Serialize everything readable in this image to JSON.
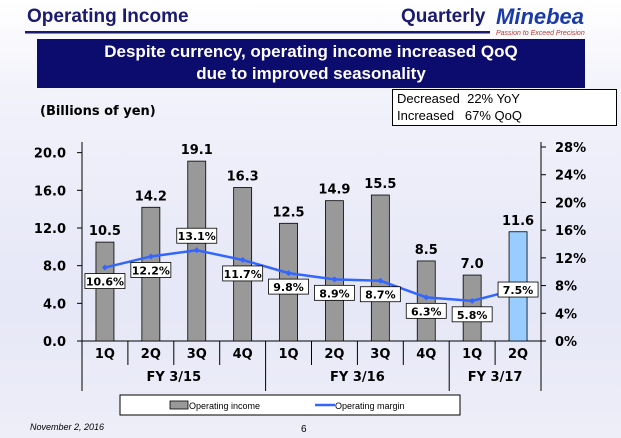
{
  "header": {
    "title": "Operating Income",
    "subtitle": "Quarterly",
    "logo": "Minebea",
    "tagline": "Passion to Exceed Precision"
  },
  "banner": {
    "line1": "Despite currency, operating income increased QoQ",
    "line2": "due to improved seasonality"
  },
  "note": {
    "line1": "Decreased  22% YoY",
    "line2": "Increased   67% QoQ"
  },
  "footer": {
    "date": "November 2, 2016",
    "page": "6"
  },
  "colors": {
    "bar": "#999999",
    "bar_highlight": "#99ccff",
    "line": "#3366ff",
    "banner": "#0c0c6e"
  },
  "chart_data": {
    "type": "bar+line",
    "ylabel": "(Billions of yen)",
    "categories": [
      "1Q",
      "2Q",
      "3Q",
      "4Q",
      "1Q",
      "2Q",
      "3Q",
      "4Q",
      "1Q",
      "2Q"
    ],
    "groups": [
      {
        "label": "FY 3/15",
        "count": 4
      },
      {
        "label": "FY 3/16",
        "count": 4
      },
      {
        "label": "FY 3/17",
        "count": 2
      }
    ],
    "series": [
      {
        "name": "Operating income",
        "type": "bar",
        "axis": "left",
        "values": [
          10.5,
          14.2,
          19.1,
          16.3,
          12.5,
          14.9,
          15.5,
          8.5,
          7.0,
          11.6
        ],
        "labels": [
          "10.5",
          "14.2",
          "19.1",
          "16.3",
          "12.5",
          "14.9",
          "15.5",
          "8.5",
          "7.0",
          "11.6"
        ]
      },
      {
        "name": "Operating margin",
        "type": "line",
        "axis": "right",
        "values": [
          10.6,
          12.2,
          13.1,
          11.7,
          9.8,
          8.9,
          8.7,
          6.3,
          5.8,
          7.5
        ],
        "labels": [
          "10.6%",
          "12.2%",
          "13.1%",
          "11.7%",
          "9.8%",
          "8.9%",
          "8.7%",
          "6.3%",
          "5.8%",
          "7.5%"
        ]
      }
    ],
    "left_axis": {
      "ylim": [
        0,
        20.6
      ],
      "ticks": [
        "0.0",
        "4.0",
        "8.0",
        "12.0",
        "16.0",
        "20.0"
      ]
    },
    "right_axis": {
      "ylim": [
        0,
        28
      ],
      "ticks": [
        "0%",
        "4%",
        "8%",
        "12%",
        "16%",
        "20%",
        "24%",
        "28%"
      ]
    },
    "legend": "bottom"
  }
}
